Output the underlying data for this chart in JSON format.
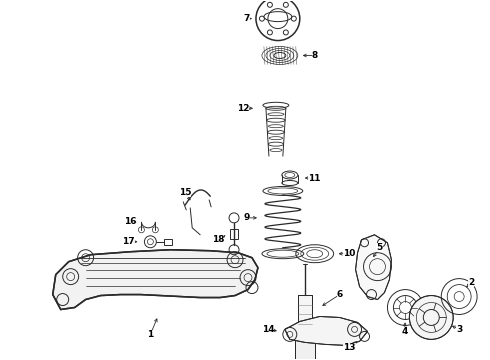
{
  "background_color": "#ffffff",
  "line_color": "#2a2a2a",
  "label_color": "#000000",
  "fig_width": 4.9,
  "fig_height": 3.6,
  "dpi": 100,
  "lw": 0.7,
  "lw_thick": 1.1,
  "fontsize": 6.5
}
